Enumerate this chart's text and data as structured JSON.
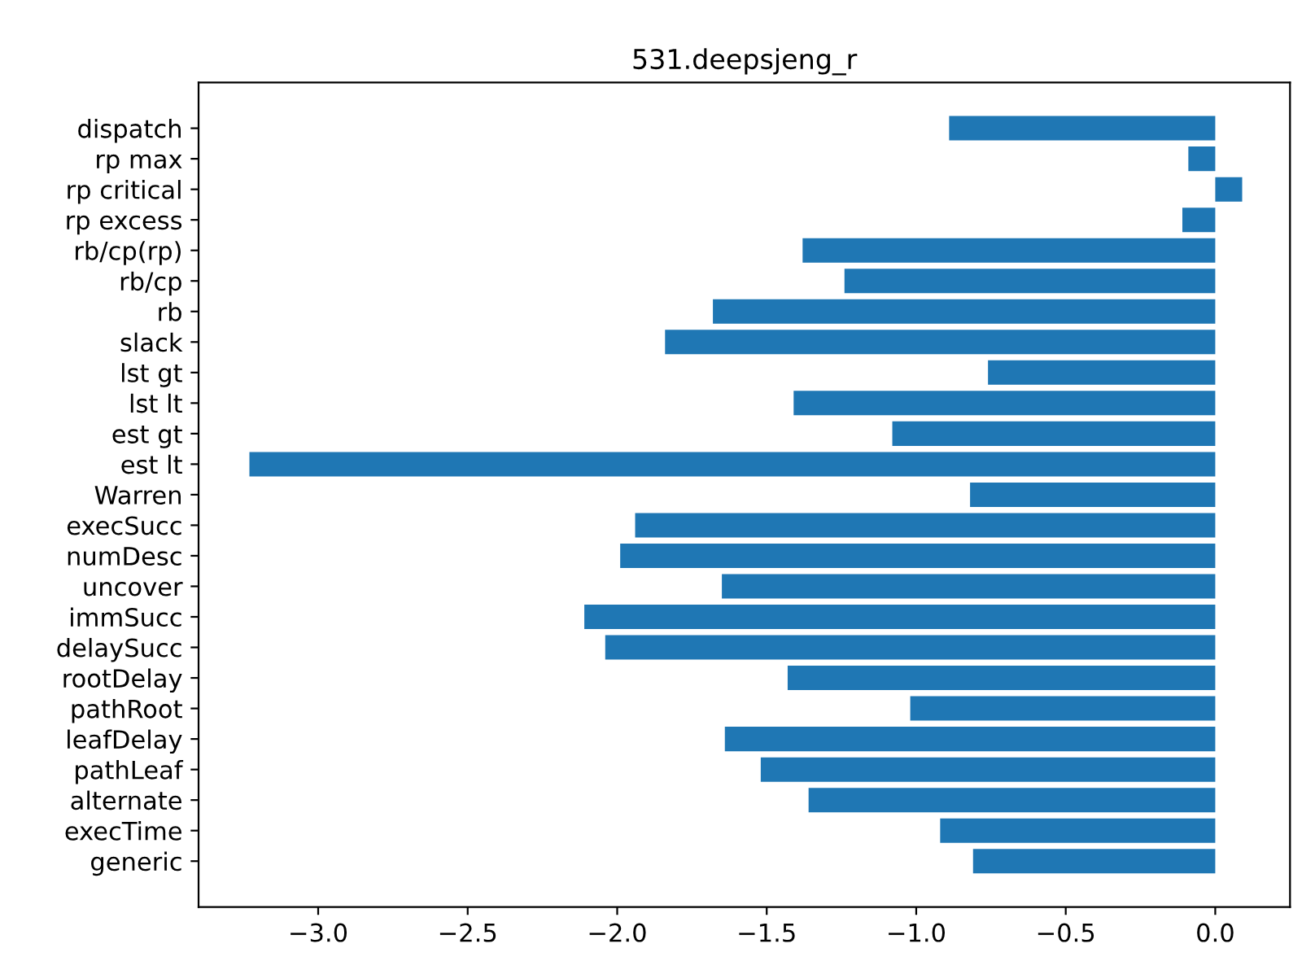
{
  "chart_data": {
    "type": "bar",
    "orientation": "horizontal",
    "title": "531.deepsjeng_r",
    "categories": [
      "dispatch",
      "rp max",
      "rp critical",
      "rp excess",
      "rb/cp(rp)",
      "rb/cp",
      "rb",
      "slack",
      "lst gt",
      "lst lt",
      "est gt",
      "est lt",
      "Warren",
      "execSucc",
      "numDesc",
      "uncover",
      "immSucc",
      "delaySucc",
      "rootDelay",
      "pathRoot",
      "leafDelay",
      "pathLeaf",
      "alternate",
      "execTime",
      "generic"
    ],
    "values": [
      -0.89,
      -0.09,
      0.09,
      -0.11,
      -1.38,
      -1.24,
      -1.68,
      -1.84,
      -0.76,
      -1.41,
      -1.08,
      -3.23,
      -0.82,
      -1.94,
      -1.99,
      -1.65,
      -2.11,
      -2.04,
      -1.43,
      -1.02,
      -1.64,
      -1.52,
      -1.36,
      -0.92,
      -0.81
    ],
    "color": "#1f77b4",
    "xlim": [
      -3.4,
      0.25
    ],
    "xticks": [
      {
        "value": -3.0,
        "label": "−3.0"
      },
      {
        "value": -2.5,
        "label": "−2.5"
      },
      {
        "value": -2.0,
        "label": "−2.0"
      },
      {
        "value": -1.5,
        "label": "−1.5"
      },
      {
        "value": -1.0,
        "label": "−1.0"
      },
      {
        "value": -0.5,
        "label": "−0.5"
      },
      {
        "value": 0.0,
        "label": "0.0"
      }
    ],
    "grid": false
  }
}
